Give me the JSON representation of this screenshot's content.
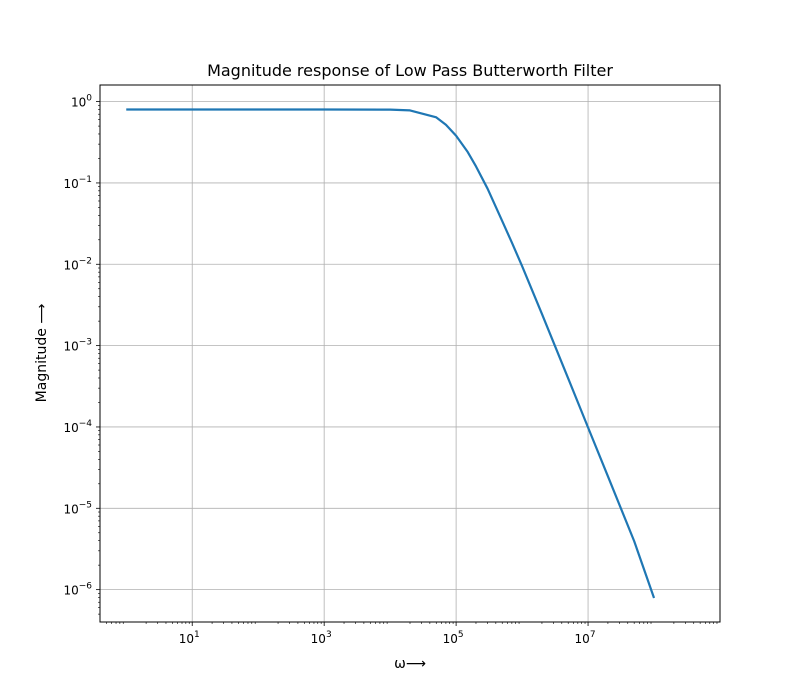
{
  "chart_data": {
    "type": "line",
    "title": "Magnitude response of Low Pass Butterworth Filter",
    "xlabel": "ω⟶",
    "ylabel": "Magnitude  ⟶",
    "x_scale": "log",
    "y_scale": "log",
    "xlim": [
      0.4,
      1000000000
    ],
    "ylim": [
      4e-07,
      1.6
    ],
    "grid": true,
    "x_ticks": [
      {
        "value": 10,
        "base": "10",
        "exp": "1"
      },
      {
        "value": 1000,
        "base": "10",
        "exp": "3"
      },
      {
        "value": 100000,
        "base": "10",
        "exp": "5"
      },
      {
        "value": 10000000,
        "base": "10",
        "exp": "7"
      }
    ],
    "y_ticks": [
      {
        "value": 1,
        "base": "10",
        "exp": "0"
      },
      {
        "value": 0.1,
        "base": "10",
        "exp": "−1"
      },
      {
        "value": 0.01,
        "base": "10",
        "exp": "−2"
      },
      {
        "value": 0.001,
        "base": "10",
        "exp": "−3"
      },
      {
        "value": 0.0001,
        "base": "10",
        "exp": "−4"
      },
      {
        "value": 1e-05,
        "base": "10",
        "exp": "−5"
      },
      {
        "value": 1e-06,
        "base": "10",
        "exp": "−6"
      }
    ],
    "series": [
      {
        "color": "#1f77b4",
        "x": [
          1,
          10,
          100,
          1000,
          10000,
          20000,
          50000,
          70000,
          100000,
          150000,
          200000,
          300000,
          500000,
          700000,
          1000000,
          2000000,
          5000000,
          10000000,
          20000000,
          50000000,
          100000000
        ],
        "y": [
          0.8,
          0.8,
          0.8,
          0.8,
          0.797,
          0.78,
          0.64,
          0.52,
          0.38,
          0.24,
          0.16,
          0.085,
          0.034,
          0.0185,
          0.0095,
          0.00245,
          0.000395,
          9.85e-05,
          2.47e-05,
          3.95e-06,
          7.9e-07
        ]
      }
    ]
  }
}
